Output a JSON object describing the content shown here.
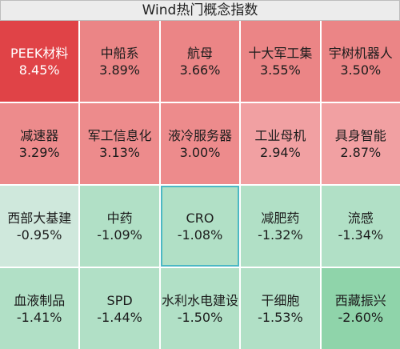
{
  "header": {
    "title": "Wind热门概念指数"
  },
  "tiles": [
    {
      "name": "PEEK材料",
      "change": "8.45%",
      "color": "#e04347",
      "text": "white"
    },
    {
      "name": "中船系",
      "change": "3.89%",
      "color": "#eb8586",
      "text": "dark"
    },
    {
      "name": "航母",
      "change": "3.66%",
      "color": "#eb8586",
      "text": "dark"
    },
    {
      "name": "十大军工集",
      "change": "3.55%",
      "color": "#eb8586",
      "text": "dark"
    },
    {
      "name": "宇树机器人",
      "change": "3.50%",
      "color": "#eb8586",
      "text": "dark"
    },
    {
      "name": "减速器",
      "change": "3.29%",
      "color": "#ed8b8c",
      "text": "dark"
    },
    {
      "name": "军工信息化",
      "change": "3.13%",
      "color": "#ed8b8c",
      "text": "dark"
    },
    {
      "name": "液冷服务器",
      "change": "3.00%",
      "color": "#ed8b8c",
      "text": "dark"
    },
    {
      "name": "工业母机",
      "change": "2.94%",
      "color": "#f1a0a2",
      "text": "dark"
    },
    {
      "name": "具身智能",
      "change": "2.87%",
      "color": "#f1a0a2",
      "text": "dark"
    },
    {
      "name": "西部大基建",
      "change": "-0.95%",
      "color": "#cfe8dc",
      "text": "dark"
    },
    {
      "name": "中药",
      "change": "-1.09%",
      "color": "#b1e0c6",
      "text": "dark"
    },
    {
      "name": "CRO",
      "change": "-1.08%",
      "color": "#b1e0c6",
      "text": "dark",
      "selected": true
    },
    {
      "name": "减肥药",
      "change": "-1.32%",
      "color": "#b1e0c6",
      "text": "dark"
    },
    {
      "name": "流感",
      "change": "-1.34%",
      "color": "#b1e0c6",
      "text": "dark"
    },
    {
      "name": "血液制品",
      "change": "-1.41%",
      "color": "#b1e0c6",
      "text": "dark"
    },
    {
      "name": "SPD",
      "change": "-1.44%",
      "color": "#b1e0c6",
      "text": "dark"
    },
    {
      "name": "水利水电建设",
      "change": "-1.50%",
      "color": "#b1e0c6",
      "text": "dark"
    },
    {
      "name": "干细胞",
      "change": "-1.53%",
      "color": "#b1e0c6",
      "text": "dark"
    },
    {
      "name": "西藏振兴",
      "change": "-2.60%",
      "color": "#8fd4aa",
      "text": "dark"
    }
  ]
}
